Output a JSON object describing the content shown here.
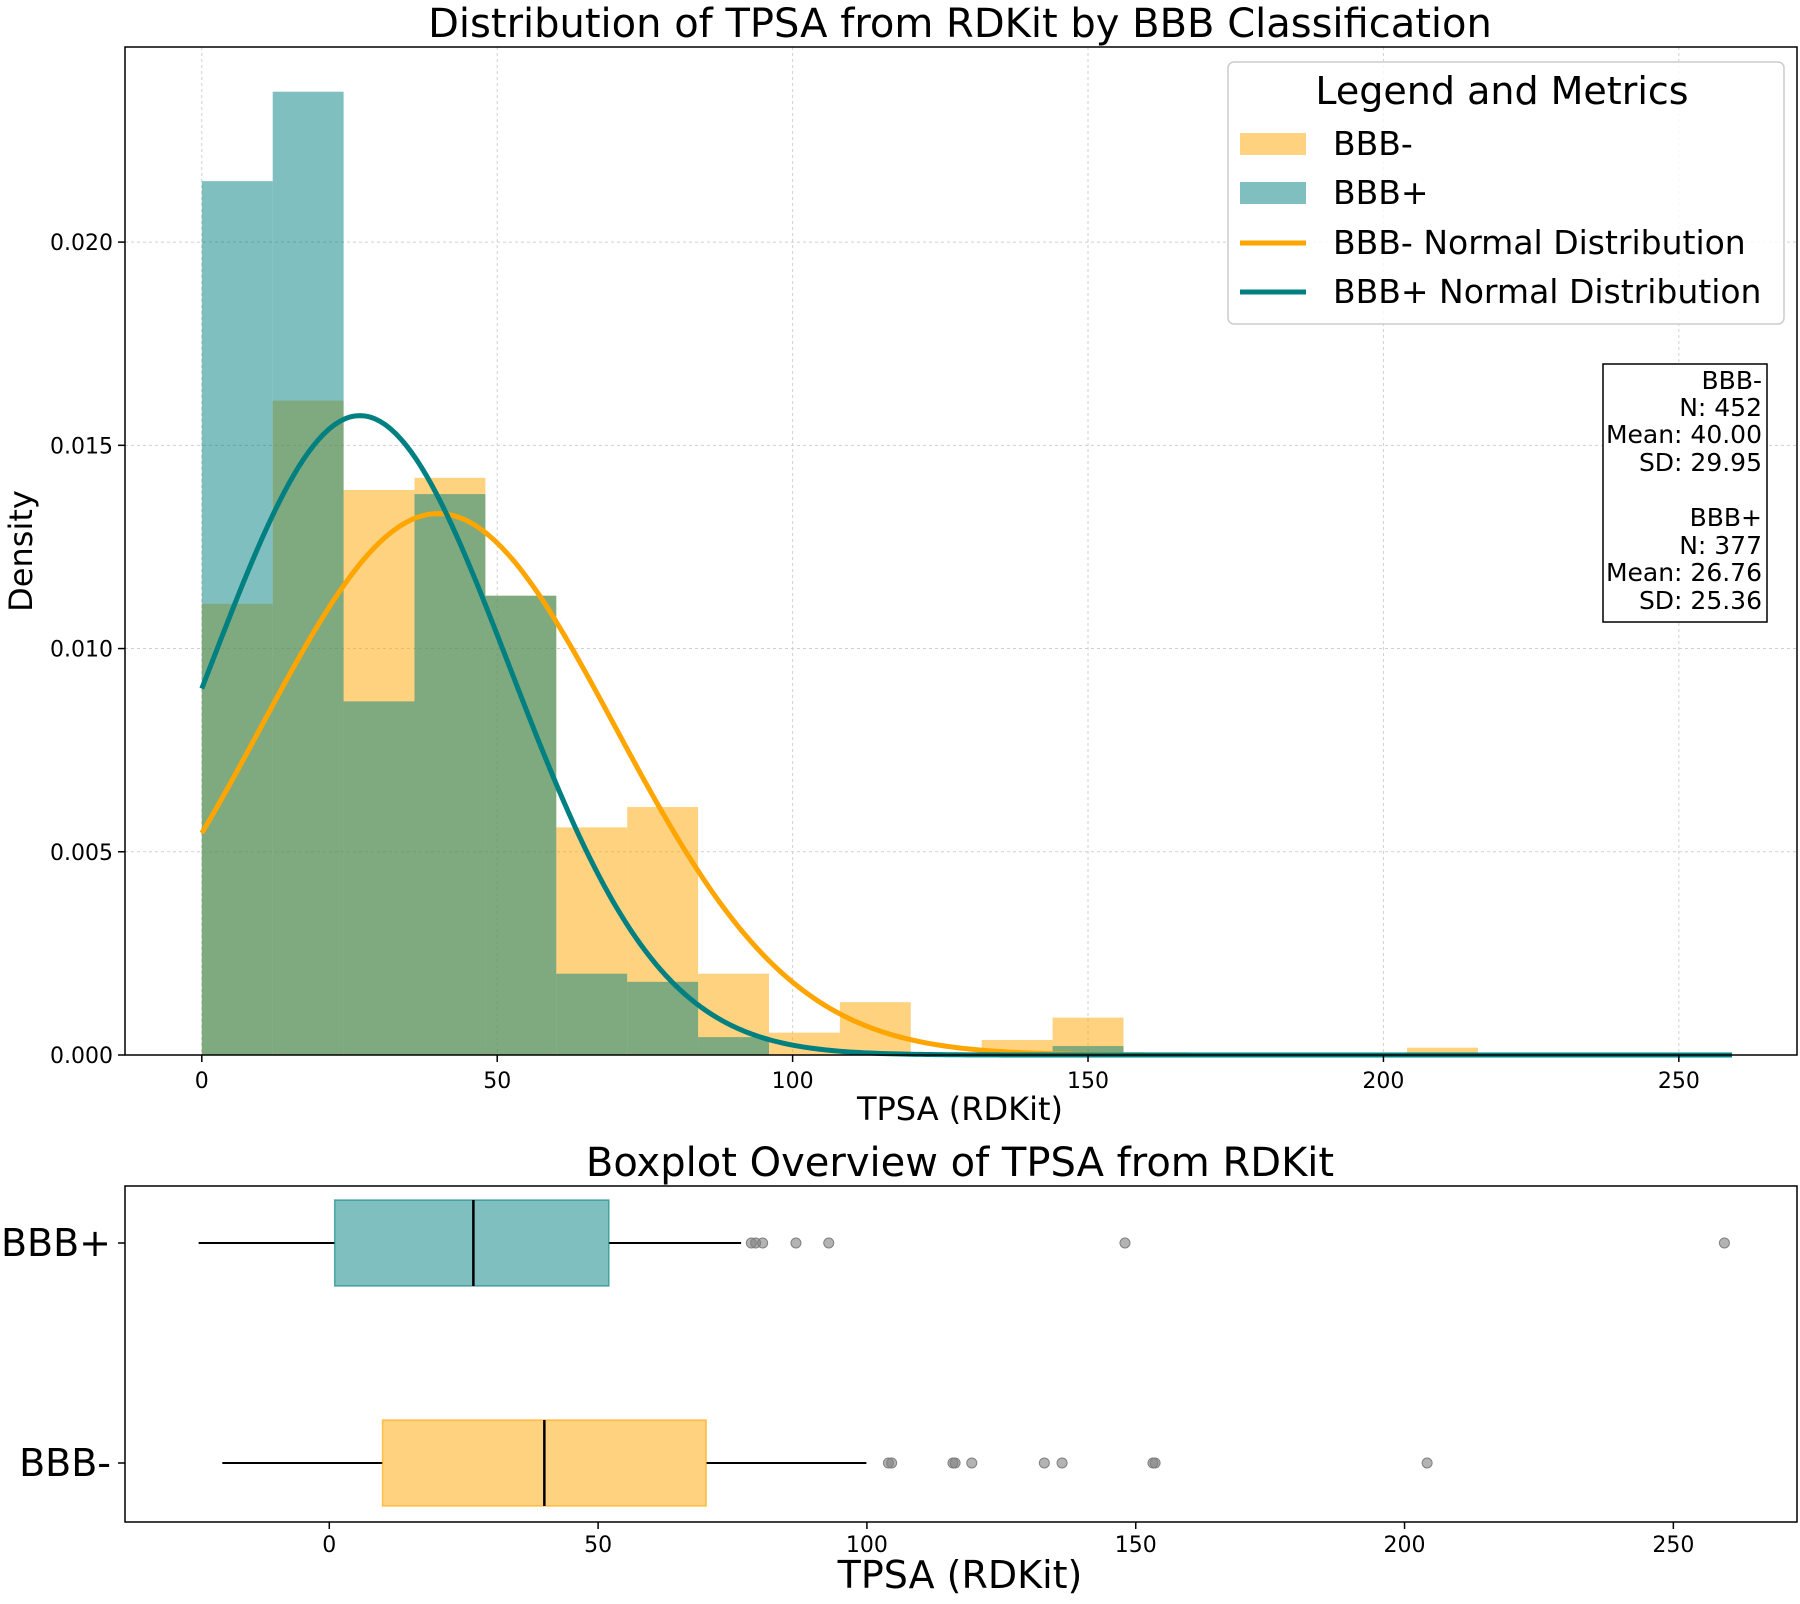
{
  "chart_data": [
    {
      "type": "histogram",
      "title": "Distribution of TPSA from RDKit by BBB Classification",
      "xlabel": "TPSA (RDKit)",
      "ylabel": "Density",
      "xlim": [
        -13,
        270
      ],
      "ylim": [
        0,
        0.0248
      ],
      "xticks": [
        0,
        50,
        100,
        150,
        200,
        250
      ],
      "xtick_labels": [
        "0",
        "50",
        "100",
        "150",
        "200",
        "250"
      ],
      "yticks": [
        0,
        0.005,
        0.01,
        0.015,
        0.02
      ],
      "ytick_labels": [
        "0.000",
        "0.005",
        "0.010",
        "0.015",
        "0.020"
      ],
      "grid": true,
      "bin_edges": [
        0,
        12,
        24,
        36,
        48,
        60,
        72,
        84,
        96,
        108,
        120,
        132,
        144,
        156,
        168,
        180,
        192,
        204,
        216,
        228,
        240,
        252,
        259
      ],
      "series": [
        {
          "name": "BBB-",
          "color": "#ffa500",
          "densities": [
            0.0111,
            0.0161,
            0.0139,
            0.0142,
            0.0113,
            0.0056,
            0.0061,
            0.002,
            0.00055,
            0.0013,
            0,
            0.00037,
            0.00092,
            0,
            0,
            0,
            0,
            0.00018,
            0,
            0,
            0,
            0
          ]
        },
        {
          "name": "BBB+",
          "color": "#008080",
          "densities": [
            0.0215,
            0.0237,
            0.0087,
            0.0138,
            0.0113,
            0.002,
            0.0018,
            0.00044,
            0,
            0,
            0,
            0,
            0.00022,
            0,
            0,
            0,
            0,
            0,
            0,
            0,
            0,
            0
          ]
        }
      ],
      "normal_curves": [
        {
          "name": "BBB- Normal Distribution",
          "color": "#ffa500",
          "mean": 40.0,
          "sd": 29.95,
          "x_range": [
            0,
            259
          ]
        },
        {
          "name": "BBB+ Normal Distribution",
          "color": "#008080",
          "mean": 26.76,
          "sd": 25.36,
          "x_range": [
            0,
            259
          ]
        }
      ],
      "legend": {
        "title": "Legend and Metrics",
        "placement": "top-right",
        "entries": [
          "BBB-",
          "BBB+",
          "BBB- Normal Distribution",
          "BBB+ Normal Distribution"
        ]
      },
      "metrics_box": {
        "placement": "right",
        "lines": [
          "BBB-",
          "N: 452",
          "Mean: 40.00",
          "SD: 29.95",
          "",
          "BBB+",
          "N: 377",
          "Mean: 26.76",
          "SD: 25.36"
        ]
      }
    },
    {
      "type": "boxplot",
      "title": "Boxplot Overview of TPSA from RDKit",
      "xlabel": "TPSA (RDKit)",
      "xlim": [
        -38,
        273
      ],
      "xticks": [
        0,
        50,
        100,
        150,
        200,
        250
      ],
      "xtick_labels": [
        "0",
        "50",
        "100",
        "150",
        "200",
        "250"
      ],
      "categories": [
        "BBB+",
        "BBB-"
      ],
      "boxes": [
        {
          "name": "BBB+",
          "color": "#008080",
          "whisker_low": -24.3,
          "q1": 1.0,
          "median": 26.8,
          "q3": 52.0,
          "whisker_high": 76.6,
          "outliers": [
            78.5,
            79.3,
            80.6,
            86.8,
            92.9,
            148.0,
            259.5
          ]
        },
        {
          "name": "BBB-",
          "color": "#ffa500",
          "whisker_low": -19.9,
          "q1": 9.9,
          "median": 40.0,
          "q3": 70.1,
          "whisker_high": 99.9,
          "outliers": [
            104.0,
            104.6,
            116.0,
            116.4,
            119.5,
            133.0,
            136.3,
            153.2,
            153.6,
            204.2
          ]
        }
      ]
    }
  ]
}
